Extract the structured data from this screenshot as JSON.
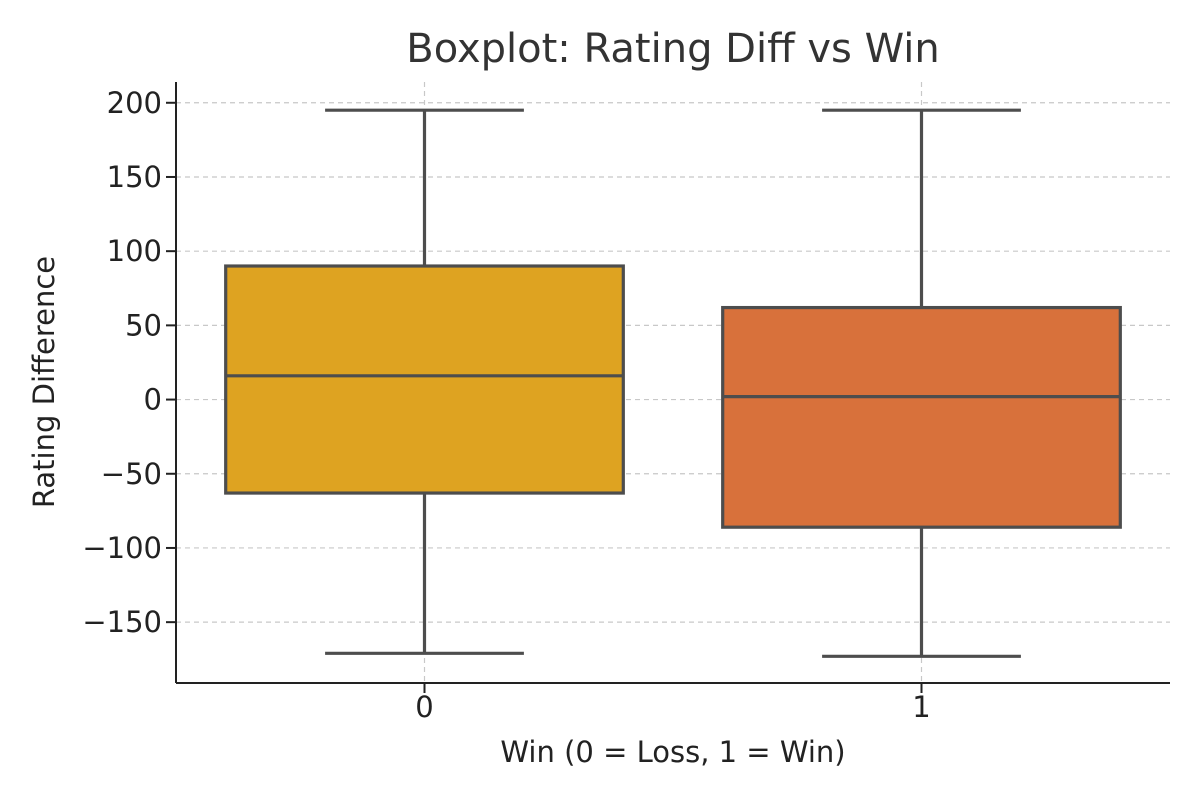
{
  "chart_data": {
    "type": "boxplot",
    "title": "Boxplot: Rating Diff vs Win",
    "xlabel": "Win (0 = Loss, 1 = Win)",
    "ylabel": "Rating Difference",
    "categories": [
      "0",
      "1"
    ],
    "y_ticks": [
      -150,
      -100,
      -50,
      0,
      50,
      100,
      150,
      200
    ],
    "y_tick_labels": [
      "−150",
      "−100",
      "−50",
      "0",
      "50",
      "100",
      "150",
      "200"
    ],
    "ylim": [
      -191,
      214
    ],
    "grid": true,
    "boxes": [
      {
        "category": "0",
        "whisker_low": -171,
        "q1": -63,
        "median": 16,
        "q3": 90,
        "whisker_high": 195,
        "color": "#DEA321"
      },
      {
        "category": "1",
        "whisker_low": -173,
        "q1": -86,
        "median": 2,
        "q3": 62,
        "whisker_high": 195,
        "color": "#D8713B"
      }
    ],
    "line_color": "#4D4D4D",
    "grid_color": "#C8C8C8"
  }
}
